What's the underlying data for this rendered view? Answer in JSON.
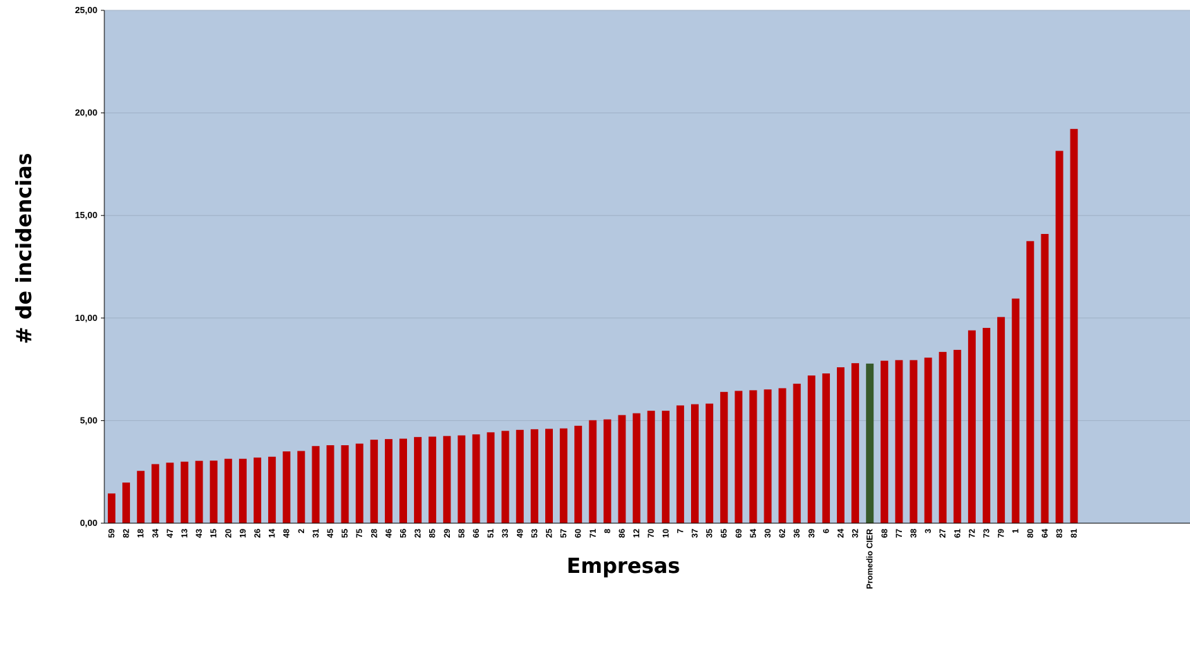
{
  "chart_data": {
    "type": "bar",
    "xlabel": "Empresas",
    "ylabel": "# de incidencias",
    "ylim": [
      0,
      25
    ],
    "yticks": [
      "0,00",
      "5,00",
      "10,00",
      "15,00",
      "20,00",
      "25,00"
    ],
    "grid": true,
    "legend": "none",
    "colors": {
      "plot_bg": "#b5c8df",
      "bar": "#c00000",
      "highlight": "#375a2b",
      "gridline": "#9fb0c6"
    },
    "highlight_category": "Promedio CIER",
    "categories": [
      "59",
      "82",
      "18",
      "34",
      "47",
      "13",
      "43",
      "15",
      "20",
      "19",
      "26",
      "14",
      "48",
      "2",
      "31",
      "45",
      "55",
      "75",
      "28",
      "46",
      "56",
      "23",
      "85",
      "29",
      "58",
      "66",
      "51",
      "33",
      "49",
      "53",
      "25",
      "57",
      "60",
      "71",
      "8",
      "86",
      "12",
      "70",
      "10",
      "7",
      "37",
      "35",
      "65",
      "69",
      "54",
      "30",
      "62",
      "36",
      "39",
      "6",
      "24",
      "32",
      "Promedio CIER",
      "68",
      "77",
      "38",
      "3",
      "27",
      "61",
      "72",
      "73",
      "79",
      "1",
      "80",
      "64",
      "83",
      "81"
    ],
    "values": [
      1.45,
      1.98,
      2.55,
      2.88,
      2.95,
      3.0,
      3.04,
      3.05,
      3.14,
      3.14,
      3.2,
      3.24,
      3.5,
      3.52,
      3.76,
      3.8,
      3.8,
      3.88,
      4.07,
      4.1,
      4.12,
      4.2,
      4.22,
      4.25,
      4.28,
      4.33,
      4.43,
      4.5,
      4.55,
      4.58,
      4.6,
      4.62,
      4.75,
      5.02,
      5.06,
      5.27,
      5.36,
      5.48,
      5.48,
      5.74,
      5.8,
      5.83,
      6.4,
      6.45,
      6.48,
      6.52,
      6.58,
      6.8,
      7.2,
      7.3,
      7.6,
      7.8,
      7.78,
      7.92,
      7.95,
      7.95,
      8.07,
      8.35,
      8.45,
      9.4,
      9.52,
      10.05,
      10.95,
      13.75,
      14.1,
      18.15,
      19.22
    ]
  }
}
